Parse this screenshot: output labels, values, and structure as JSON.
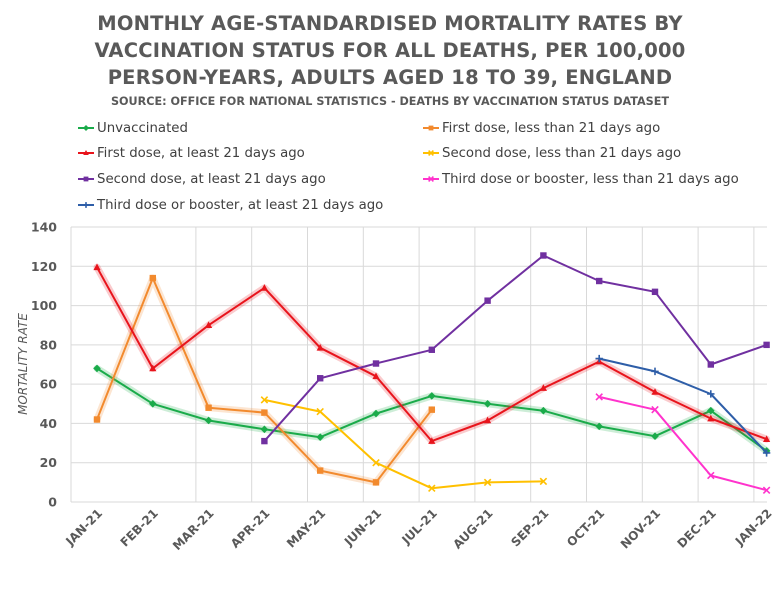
{
  "chart_data": {
    "type": "line",
    "title_lines": [
      "MONTHLY AGE-STANDARDISED MORTALITY RATES BY",
      "VACCINATION STATUS FOR ALL DEATHS, PER 100,000",
      "PERSON-YEARS, ADULTS AGED 18 TO 39, ENGLAND"
    ],
    "subtitle": "SOURCE: OFFICE FOR NATIONAL STATISTICS - DEATHS BY VACCINATION STATUS DATASET",
    "ylabel": "MORTALITY RATE",
    "xlabel": "",
    "ylim": [
      0,
      140
    ],
    "yticks": [
      0,
      20,
      40,
      60,
      80,
      100,
      120,
      140
    ],
    "grid": true,
    "legend_position": "top",
    "categories": [
      "JAN-21",
      "FEB-21",
      "MAR-21",
      "APR-21",
      "MAY-21",
      "JUN-21",
      "JUL-21",
      "AUG-21",
      "SEP-21",
      "OCT-21",
      "NOV-21",
      "DEC-21",
      "JAN-22"
    ],
    "series": [
      {
        "name": "Unvaccinated",
        "color": "#1aab4a",
        "glow": true,
        "marker": "diamond",
        "values": [
          68,
          50,
          41.5,
          37,
          33,
          45,
          54,
          50,
          46.5,
          38.5,
          33.5,
          46.5,
          26
        ]
      },
      {
        "name": "First dose, less than 21 days ago",
        "color": "#f28a2e",
        "glow": true,
        "marker": "square",
        "values": [
          42,
          114,
          48,
          45.5,
          16,
          10,
          47,
          null,
          null,
          null,
          null,
          null,
          null
        ]
      },
      {
        "name": "First dose, at least 21 days ago",
        "color": "#e8141c",
        "glow": true,
        "marker": "triangle",
        "values": [
          119.5,
          68,
          90,
          109,
          78.5,
          64,
          31,
          41.5,
          58,
          71.5,
          56,
          42.5,
          32
        ]
      },
      {
        "name": "Second dose, less than 21 days ago",
        "color": "#ffc000",
        "glow": false,
        "marker": "x",
        "values": [
          null,
          null,
          null,
          52,
          46,
          20,
          7,
          10,
          10.5,
          null,
          null,
          null,
          null
        ]
      },
      {
        "name": "Second dose, at least 21 days ago",
        "color": "#7030a0",
        "glow": false,
        "marker": "square",
        "values": [
          null,
          null,
          null,
          31,
          63,
          70.5,
          77.5,
          102.5,
          125.5,
          112.5,
          107,
          70,
          80
        ]
      },
      {
        "name": "Third dose or booster, less than 21 days ago",
        "color": "#ff33cc",
        "glow": false,
        "marker": "x",
        "values": [
          null,
          null,
          null,
          null,
          null,
          null,
          null,
          null,
          null,
          53.5,
          47,
          13.5,
          6
        ]
      },
      {
        "name": "Third dose or booster, at least 21 days ago",
        "color": "#2e5ea8",
        "glow": false,
        "marker": "plus",
        "values": [
          null,
          null,
          null,
          null,
          null,
          null,
          null,
          null,
          null,
          73,
          66.5,
          55,
          25
        ]
      }
    ]
  }
}
